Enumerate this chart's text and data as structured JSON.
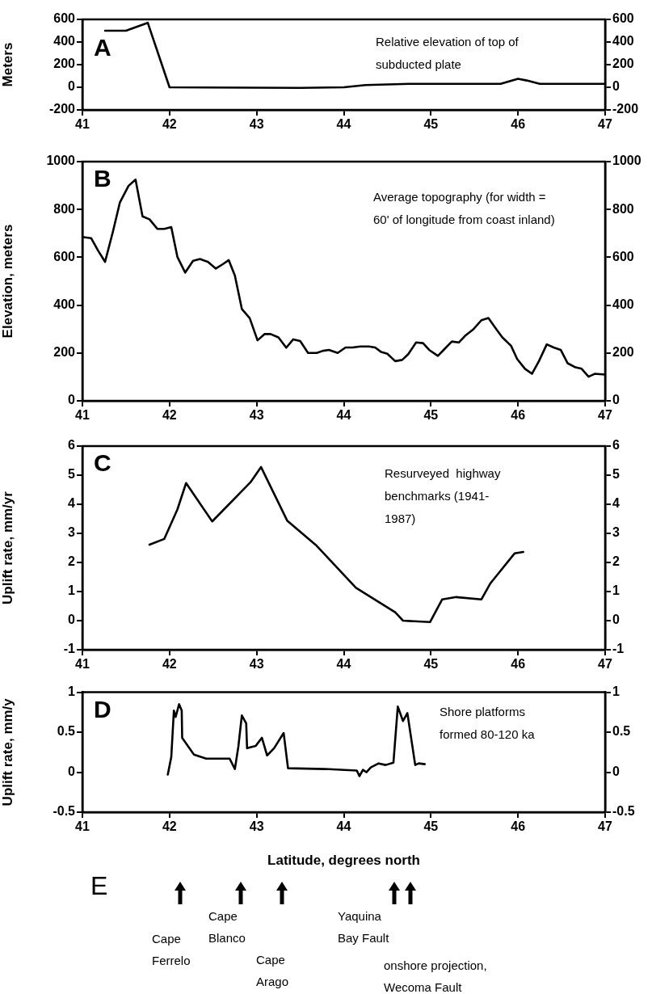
{
  "chart_data": [
    {
      "type": "line",
      "title": "A",
      "ylabel": "Meters",
      "annotations": [
        "Relative elevation of top of subducted plate"
      ],
      "xlim": [
        41,
        47
      ],
      "xticks": [
        41,
        42,
        43,
        44,
        45,
        46,
        47
      ],
      "ylim": [
        -200,
        600
      ],
      "yticks": [
        -200,
        0,
        200,
        400,
        600
      ],
      "y2lim": [
        -200,
        600
      ],
      "y2ticks": [
        -200,
        0,
        200,
        400,
        600
      ],
      "grid": false,
      "legend": false,
      "marker": "none",
      "line_style": "solid",
      "series": [
        {
          "color": "#000000",
          "x": [
            41.26,
            41.5,
            41.75,
            42.0,
            43.5,
            44.0,
            44.25,
            44.75,
            45.8,
            46.0,
            46.1,
            46.25,
            47.0
          ],
          "values": [
            500,
            500,
            570,
            0,
            -5,
            0,
            20,
            30,
            30,
            75,
            60,
            30,
            30
          ]
        }
      ]
    },
    {
      "type": "line",
      "title": "B",
      "ylabel": "Elevation, meters",
      "annotations": [
        "Average topography (for width = 60' of longitude from coast inland)"
      ],
      "xlim": [
        41,
        47
      ],
      "xticks": [
        41,
        42,
        43,
        44,
        45,
        46,
        47
      ],
      "ylim": [
        0,
        1000
      ],
      "yticks": [
        0,
        200,
        400,
        600,
        800,
        1000
      ],
      "y2lim": [
        0,
        1000
      ],
      "y2ticks": [
        0,
        200,
        400,
        600,
        800,
        1000
      ],
      "grid": false,
      "legend": false,
      "marker": "none",
      "line_style": "solid",
      "series": [
        {
          "color": "#000000",
          "x": [
            41,
            41.1,
            41.18,
            41.26,
            41.35,
            41.43,
            41.53,
            41.61,
            41.69,
            41.77,
            41.86,
            41.94,
            42.02,
            42.09,
            42.18,
            42.27,
            42.35,
            42.44,
            42.53,
            42.61,
            42.68,
            42.75,
            42.83,
            42.92,
            43.01,
            43.09,
            43.16,
            43.25,
            43.34,
            43.42,
            43.5,
            43.59,
            43.69,
            43.76,
            43.83,
            43.93,
            44.02,
            44.1,
            44.19,
            44.29,
            44.36,
            44.43,
            44.5,
            44.59,
            44.67,
            44.74,
            44.83,
            44.91,
            44.98,
            45.08,
            45.16,
            45.24,
            45.32,
            45.39,
            45.49,
            45.58,
            45.66,
            45.74,
            45.82,
            45.92,
            45.99,
            46.08,
            46.16,
            46.24,
            46.33,
            46.41,
            46.49,
            46.57,
            46.66,
            46.73,
            46.81,
            46.88,
            47
          ],
          "values": [
            685,
            680,
            628,
            581,
            707,
            829,
            899,
            925,
            771,
            759,
            719,
            719,
            726,
            602,
            536,
            585,
            593,
            581,
            553,
            571,
            588,
            524,
            384,
            346,
            253,
            279,
            279,
            265,
            222,
            257,
            250,
            200,
            200,
            209,
            213,
            200,
            223,
            223,
            227,
            227,
            223,
            204,
            197,
            166,
            171,
            195,
            244,
            241,
            213,
            188,
            218,
            248,
            244,
            271,
            300,
            337,
            346,
            305,
            265,
            230,
            175,
            134,
            113,
            166,
            236,
            223,
            213,
            157,
            140,
            134,
            101,
            113,
            110
          ]
        }
      ]
    },
    {
      "type": "line",
      "title": "C",
      "ylabel": "Uplift rate, mm/yr",
      "annotations": [
        "Resurveyed  highway benchmarks (1941-1987)"
      ],
      "xlim": [
        41,
        47
      ],
      "xticks": [
        41,
        42,
        43,
        44,
        45,
        46,
        47
      ],
      "ylim": [
        -1,
        6
      ],
      "yticks": [
        -1,
        0,
        1,
        2,
        3,
        4,
        5,
        6
      ],
      "y2lim": [
        -1,
        6
      ],
      "y2ticks": [
        -1,
        0,
        1,
        2,
        3,
        4,
        5,
        6
      ],
      "grid": false,
      "legend": false,
      "marker": "none",
      "line_style": "solid",
      "series": [
        {
          "color": "#000000",
          "x": [
            41.77,
            41.94,
            42.09,
            42.19,
            42.49,
            42.93,
            43.05,
            43.35,
            43.68,
            44.14,
            44.59,
            44.68,
            44.99,
            45.13,
            45.29,
            45.58,
            45.68,
            45.96,
            46.06
          ],
          "values": [
            2.61,
            2.81,
            3.82,
            4.73,
            3.41,
            4.76,
            5.28,
            3.44,
            2.6,
            1.13,
            0.29,
            0.0,
            -0.05,
            0.73,
            0.81,
            0.73,
            1.27,
            2.31,
            2.36
          ]
        }
      ]
    },
    {
      "type": "line",
      "title": "D",
      "ylabel": "Uplift rate, mm/y",
      "xlabel": "Latitude, degrees north",
      "annotations": [
        "Shore platforms formed 80-120 ka",
        "E",
        "Cape Ferrelo",
        "Cape Blanco",
        "Cape Arago",
        "Yaquina Bay Fault",
        "onshore projection, Wecoma Fault"
      ],
      "xlim": [
        41,
        47
      ],
      "xticks": [
        41,
        42,
        43,
        44,
        45,
        46,
        47
      ],
      "ylim": [
        -0.5,
        1
      ],
      "yticks": [
        -0.5,
        0,
        0.5,
        1
      ],
      "y2lim": [
        -0.5,
        1
      ],
      "y2ticks": [
        -0.5,
        0,
        0.5,
        1
      ],
      "grid": false,
      "legend": false,
      "marker": "none",
      "line_style": "solid",
      "series": [
        {
          "color": "#000000",
          "x": [
            41.98,
            42.02,
            42.05,
            42.07,
            42.11,
            42.14,
            42.145,
            42.28,
            42.42,
            42.69,
            42.75,
            42.79,
            42.83,
            42.88,
            42.89,
            42.99,
            43.06,
            43.12,
            43.2,
            43.31,
            43.36,
            43.78,
            44.15,
            44.18,
            44.22,
            44.26,
            44.31,
            44.4,
            44.48,
            44.57,
            44.62,
            44.68,
            44.73,
            44.82,
            44.86,
            44.93
          ],
          "values": [
            -0.03,
            0.19,
            0.77,
            0.69,
            0.85,
            0.77,
            0.43,
            0.22,
            0.17,
            0.17,
            0.04,
            0.32,
            0.71,
            0.61,
            0.3,
            0.33,
            0.43,
            0.21,
            0.3,
            0.49,
            0.05,
            0.04,
            0.02,
            -0.05,
            0.03,
            0.0,
            0.06,
            0.11,
            0.09,
            0.12,
            0.82,
            0.64,
            0.74,
            0.09,
            0.11,
            0.1
          ]
        }
      ]
    }
  ]
}
